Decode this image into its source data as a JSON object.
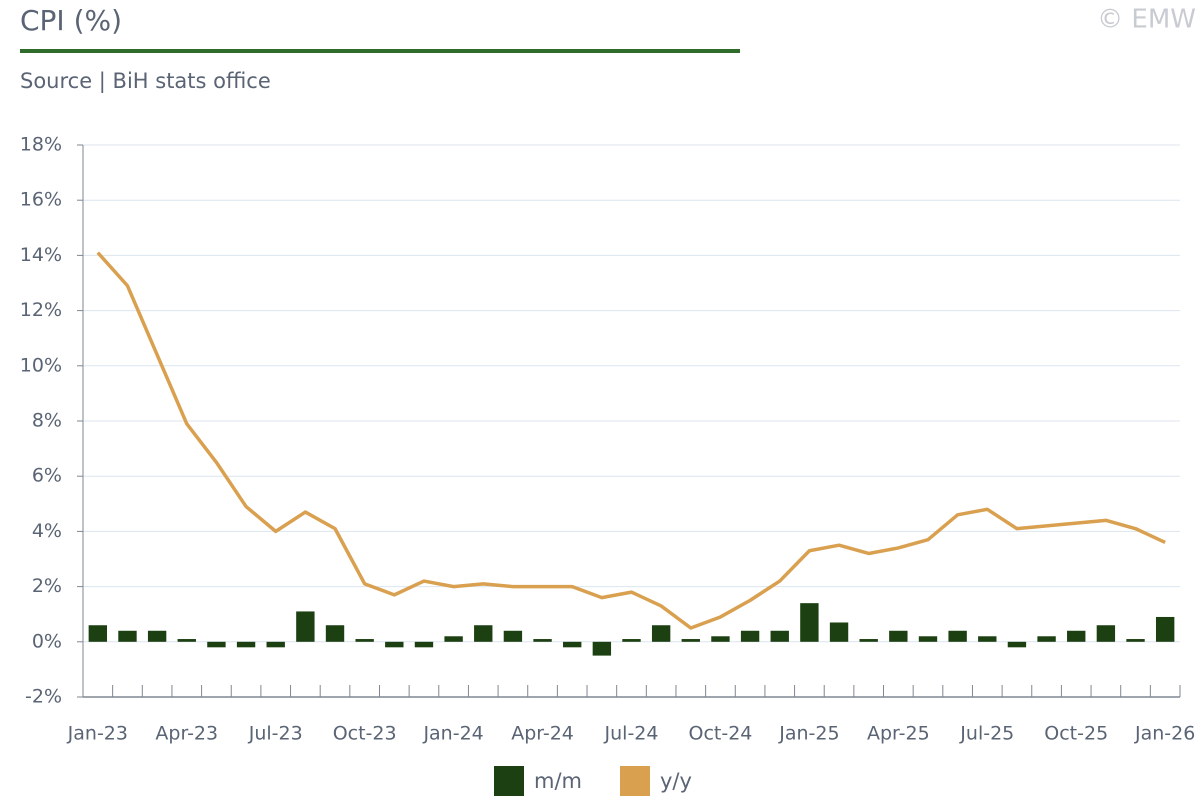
{
  "chart_data": {
    "type": "bar",
    "title": "CPI (%)",
    "subtitle": "Source | BiH stats office",
    "watermark": "© EMW",
    "categories": [
      "Jan-23",
      null,
      null,
      "Apr-23",
      null,
      null,
      "Jul-23",
      null,
      null,
      "Oct-23",
      null,
      null,
      "Jan-24",
      null,
      null,
      "Apr-24",
      null,
      null,
      "Jul-24",
      null,
      null,
      "Oct-24",
      null,
      null,
      "Jan-25",
      null,
      null,
      "Apr-25",
      null,
      null,
      "Jul-25",
      null,
      null,
      "Oct-25",
      null,
      null,
      "Jan-26"
    ],
    "series": [
      {
        "name": "m/m",
        "type": "bar",
        "color": "#1d4012",
        "values": [
          0.6,
          0.4,
          0.4,
          0.1,
          -0.2,
          -0.2,
          -0.2,
          1.1,
          0.6,
          0.1,
          -0.2,
          -0.2,
          0.2,
          0.6,
          0.4,
          0.1,
          -0.2,
          -0.5,
          0.1,
          0.6,
          0.1,
          0.2,
          0.4,
          0.4,
          1.4,
          0.7,
          0.1,
          0.4,
          0.2,
          0.4,
          0.2,
          -0.2,
          0.2,
          0.4,
          0.6,
          0.1,
          0.9
        ]
      },
      {
        "name": "y/y",
        "type": "line",
        "color": "#d9a050",
        "values": [
          14.1,
          12.9,
          10.4,
          7.9,
          6.5,
          4.9,
          4.0,
          4.7,
          4.1,
          2.1,
          1.7,
          2.2,
          2.0,
          2.1,
          2.0,
          2.0,
          2.0,
          1.6,
          1.8,
          1.3,
          0.5,
          0.9,
          1.5,
          2.2,
          3.3,
          3.5,
          3.2,
          3.4,
          3.7,
          4.6,
          4.8,
          4.1,
          4.2,
          4.3,
          4.4,
          4.1,
          3.6
        ]
      }
    ],
    "ylim": [
      -2,
      18
    ],
    "yticks": [
      {
        "value": -2,
        "label": "-2%"
      },
      {
        "value": 0,
        "label": "0%"
      },
      {
        "value": 2,
        "label": "2%"
      },
      {
        "value": 4,
        "label": "4%"
      },
      {
        "value": 6,
        "label": "6%"
      },
      {
        "value": 8,
        "label": "8%"
      },
      {
        "value": 10,
        "label": "10%"
      },
      {
        "value": 12,
        "label": "12%"
      },
      {
        "value": 14,
        "label": "14%"
      },
      {
        "value": 16,
        "label": "16%"
      },
      {
        "value": 18,
        "label": "18%"
      }
    ],
    "grid": true
  }
}
